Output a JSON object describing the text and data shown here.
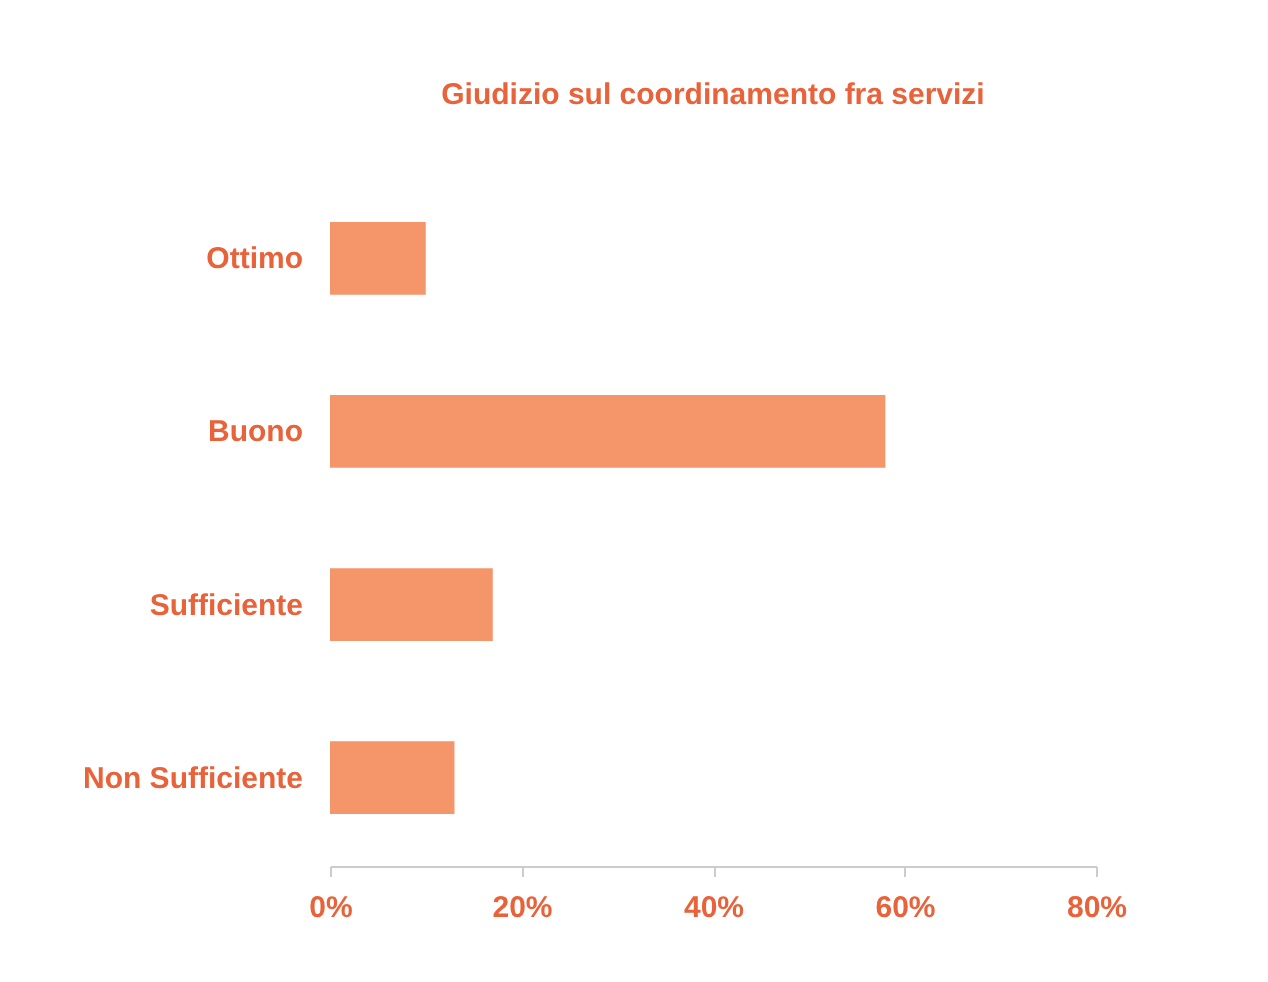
{
  "chart_data": {
    "type": "bar",
    "orientation": "horizontal",
    "title": "Giudizio sul coordinamento fra servizi",
    "categories": [
      "Ottimo",
      "Buono",
      "Sufficiente",
      "Non Sufficiente"
    ],
    "values": [
      10,
      58,
      17,
      13
    ],
    "color": "#f4956a",
    "xlim": [
      0,
      80
    ],
    "xticks": [
      {
        "value": 0,
        "label": "0%"
      },
      {
        "value": 20,
        "label": "20%"
      },
      {
        "value": 40,
        "label": "40%"
      },
      {
        "value": 60,
        "label": "60%"
      },
      {
        "value": 80,
        "label": "80%"
      }
    ]
  }
}
